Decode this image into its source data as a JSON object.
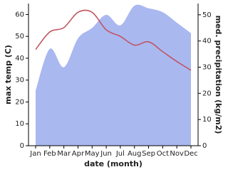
{
  "chart_data": {
    "type": "line-area",
    "categories": [
      "Jan",
      "Feb",
      "Mar",
      "Apr",
      "May",
      "Jun",
      "Jul",
      "Aug",
      "Sep",
      "Oct",
      "Nov",
      "Dec"
    ],
    "x_label": "date (month)",
    "y_label": "max temp (C)",
    "y2_label": "med. precipitation (kg/m2)",
    "ylim": [
      0,
      65
    ],
    "yticks": [
      0,
      10,
      20,
      30,
      40,
      50,
      60
    ],
    "y2lim": [
      0,
      54.3
    ],
    "y2ticks": [
      0,
      10,
      20,
      30,
      40,
      50
    ],
    "series": [
      {
        "name": "med. precipitation",
        "type": "area",
        "axis": "y2",
        "color": "#aab8f0",
        "values": [
          21,
          37,
          30,
          41,
          45,
          50,
          46,
          53.5,
          52.5,
          51,
          47,
          43
        ]
      },
      {
        "name": "max temp",
        "type": "line",
        "axis": "y",
        "color": "#c0505a",
        "values": [
          44,
          52,
          54,
          61,
          61,
          53,
          50,
          46,
          47.5,
          43,
          38.5,
          34.5
        ]
      }
    ]
  }
}
